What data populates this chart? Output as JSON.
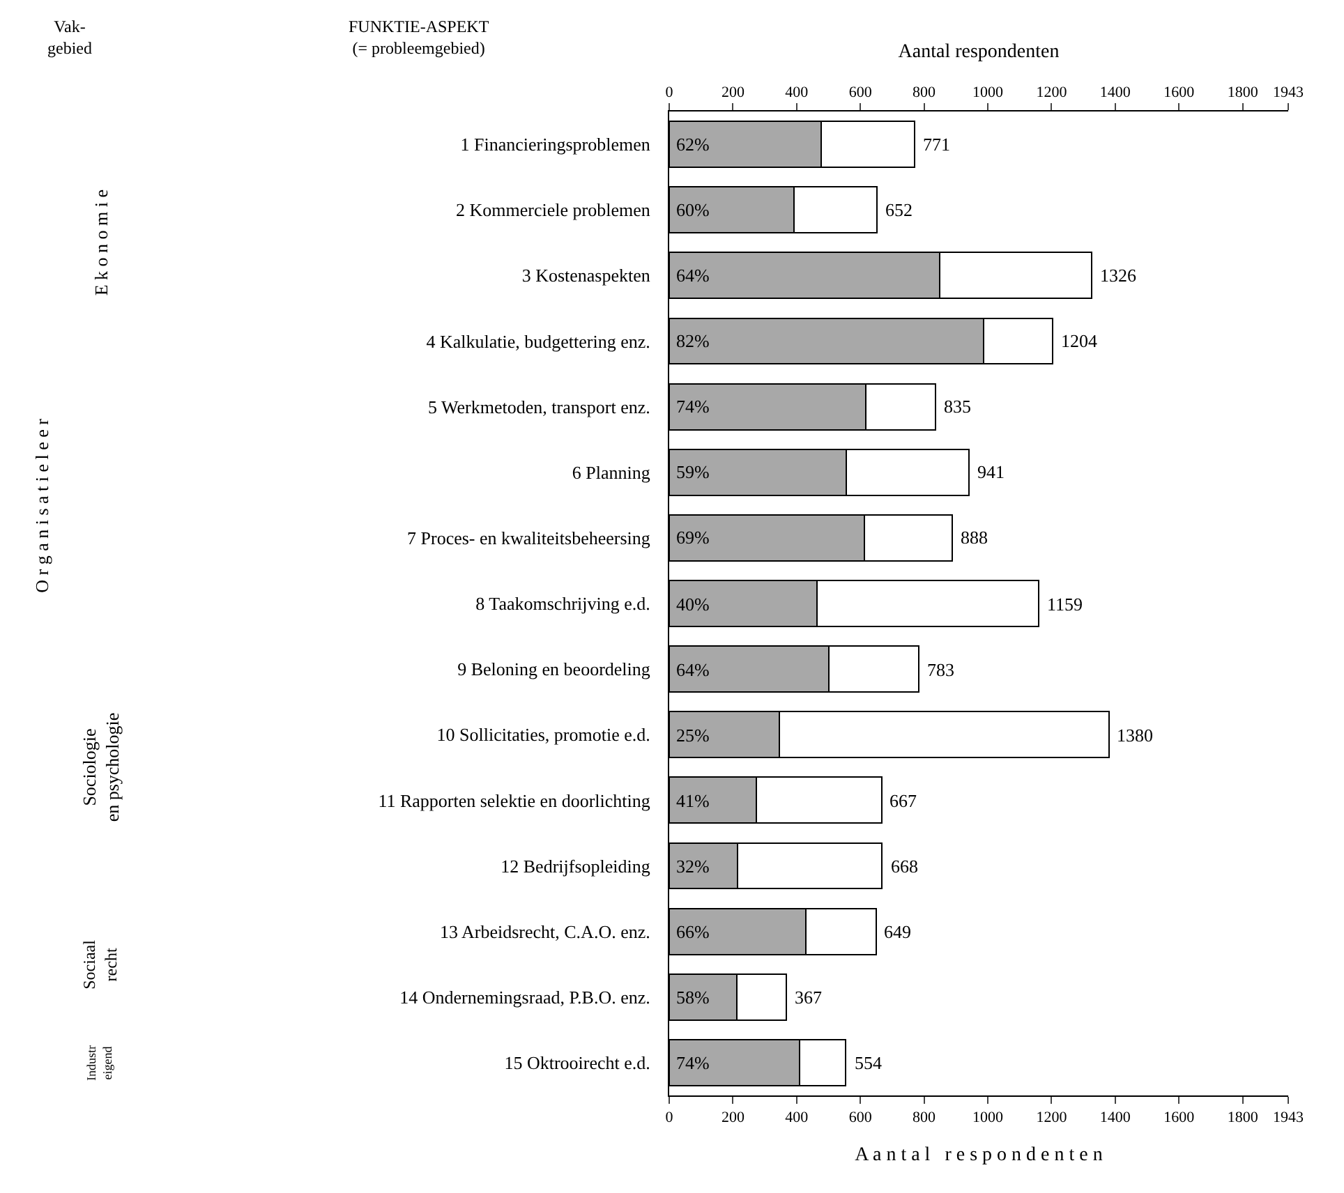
{
  "chart_data": {
    "type": "bar",
    "orientation": "horizontal",
    "stacked": true,
    "categories": [
      "1 Financieringsproblemen",
      "2 Kommerciele problemen",
      "3 Kostenaspekten",
      "4 Kalkulatie, budgettering enz.",
      "5 Werkmetoden, transport enz.",
      "6 Planning",
      "7 Proces- en kwaliteitsbeheersing",
      "8 Taakomschrijving e.d.",
      "9 Beloning en beoordeling",
      "10 Sollicitaties, promotie e.d.",
      "11 Rapporten selektie en doorlichting",
      "12 Bedrijfsopleiding",
      "13 Arbeidsrecht, C.A.O. enz.",
      "14 Ondernemingsraad, P.B.O. enz.",
      "15 Oktrooirecht e.d."
    ],
    "series": [
      {
        "color": "#a8a8a8",
        "values": [
          478,
          391,
          849,
          987,
          618,
          555,
          613,
          464,
          501,
          345,
          273,
          214,
          428,
          213,
          410
        ]
      },
      {
        "color": "#ffffff",
        "values": [
          293,
          261,
          477,
          217,
          217,
          386,
          275,
          695,
          282,
          1035,
          394,
          454,
          221,
          154,
          144
        ]
      }
    ],
    "totals": [
      "771",
      "652",
      "1326",
      "1204",
      "835",
      "941",
      "888",
      "1159",
      "783",
      "1380",
      "667",
      "668",
      "649",
      "367",
      "554"
    ],
    "xlabel": "A a n t a l   r e s p o n d e n t e n",
    "x2label": "Aantal respondenten",
    "xlim": [
      0,
      1943
    ],
    "xticks": [
      0,
      200,
      400,
      600,
      800,
      1000,
      1200,
      1400,
      1600,
      1800,
      1943
    ],
    "x2lim": [
      0,
      1943
    ],
    "x2ticks": [
      0,
      200,
      400,
      600,
      800,
      1000,
      1200,
      1400,
      1600,
      1800,
      1943
    ],
    "annotations": [
      "Vak-\ngebied",
      "FUNKTIE-ASPEKT\n(= probleemgebied)",
      "E k o n o m i e",
      "O r g a n i s a t i e l e e r",
      "Sociologie\nen psychologie",
      "Sociaal\nrecht",
      "Industr\neigend",
      {
        "text": "62%",
        "y": "1 Financieringsproblemen"
      },
      {
        "text": "60%",
        "y": "2 Kommerciele problemen"
      },
      {
        "text": "64%",
        "y": "3 Kostenaspekten"
      },
      {
        "text": "82%",
        "y": "4 Kalkulatie, budgettering enz."
      },
      {
        "text": "74%",
        "y": "5 Werkmetoden, transport enz."
      },
      {
        "text": "59%",
        "y": "6 Planning"
      },
      {
        "text": "69%",
        "y": "7 Proces- en kwaliteitsbeheersing"
      },
      {
        "text": "40%",
        "y": "8 Taakomschrijving e.d."
      },
      {
        "text": "64%",
        "y": "9 Beloning en beoordeling"
      },
      {
        "text": "25%",
        "y": "10 Sollicitaties, promotie e.d."
      },
      {
        "text": "41%",
        "y": "11 Rapporten selektie en doorlichting"
      },
      {
        "text": "32%",
        "y": "12 Bedrijfsopleiding"
      },
      {
        "text": "66%",
        "y": "13 Arbeidsrecht, C.A.O. enz."
      },
      {
        "text": "58%",
        "y": "14 Ondernemingsraad, P.B.O. enz."
      },
      {
        "text": "74%",
        "y": "15 Oktrooirecht e.d."
      }
    ]
  }
}
